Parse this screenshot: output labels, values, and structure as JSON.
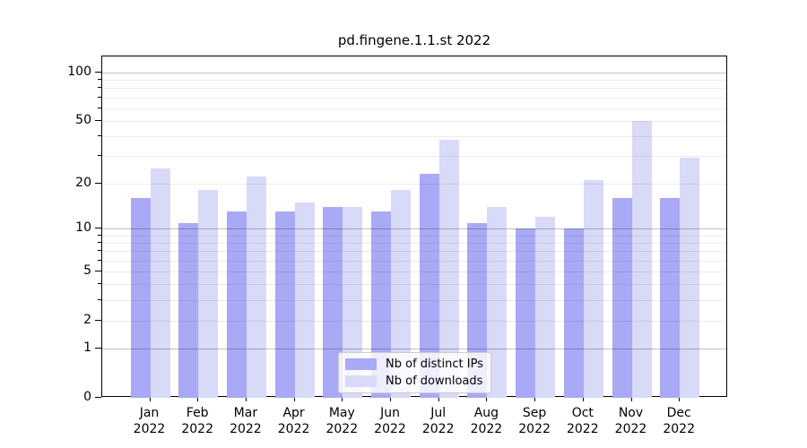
{
  "chart_data": {
    "type": "bar",
    "title": "pd.fingene.1.1.st 2022",
    "categories": [
      "Jan 2022",
      "Feb 2022",
      "Mar 2022",
      "Apr 2022",
      "May 2022",
      "Jun 2022",
      "Jul 2022",
      "Aug 2022",
      "Sep 2022",
      "Oct 2022",
      "Nov 2022",
      "Dec 2022"
    ],
    "x_tick_line1": [
      "Jan",
      "Feb",
      "Mar",
      "Apr",
      "May",
      "Jun",
      "Jul",
      "Aug",
      "Sep",
      "Oct",
      "Nov",
      "Dec"
    ],
    "x_tick_line2": [
      "2022",
      "2022",
      "2022",
      "2022",
      "2022",
      "2022",
      "2022",
      "2022",
      "2022",
      "2022",
      "2022",
      "2022"
    ],
    "series": [
      {
        "name": "Nb of distinct IPs",
        "color": "#a9a9f5",
        "values": [
          16,
          11,
          13,
          13,
          14,
          13,
          23,
          11,
          10,
          10,
          16,
          16
        ]
      },
      {
        "name": "Nb of downloads",
        "color": "#d9d9f8",
        "values": [
          25,
          18,
          22,
          15,
          14,
          18,
          38,
          14,
          12,
          21,
          50,
          29
        ]
      }
    ],
    "yscale": "log1p",
    "ylim": [
      0,
      125
    ],
    "y_tick_values": [
      0,
      1,
      2,
      5,
      10,
      20,
      50,
      100
    ],
    "y_tick_labels": [
      "0",
      "1",
      "2",
      "5",
      "10",
      "20",
      "50",
      "100"
    ],
    "y_major_gridlines": [
      1,
      10,
      100
    ],
    "y_minor_gridlines": [
      2,
      3,
      4,
      5,
      6,
      7,
      8,
      9,
      20,
      30,
      40,
      50,
      60,
      70,
      80,
      90
    ],
    "grid": true,
    "legend_position": "lower center",
    "colors": {
      "axis": "#000000",
      "major_grid": "#c0c0c0",
      "minor_grid": "#ececec",
      "background": "#ffffff"
    }
  }
}
